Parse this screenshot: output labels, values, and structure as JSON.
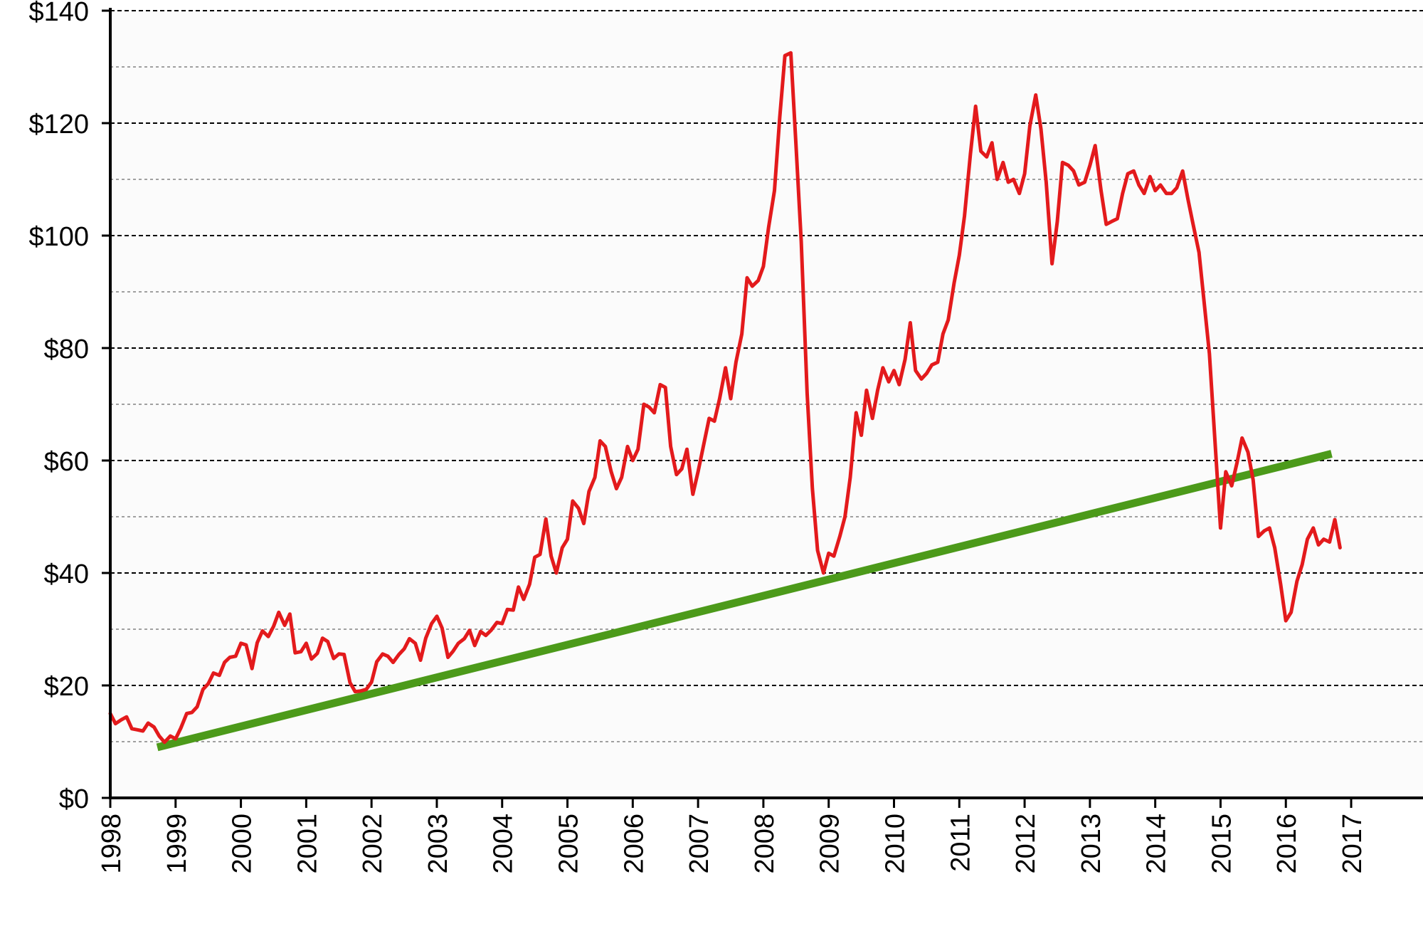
{
  "chart_data": {
    "type": "line",
    "title": "",
    "xlabel": "",
    "ylabel": "",
    "xlim": [
      1998,
      2018.1
    ],
    "ylim": [
      0,
      140
    ],
    "grid": {
      "major_y": true,
      "minor_y": true,
      "style": "dashed"
    },
    "colors": {
      "price": "#e31a1c",
      "trend": "#4c9a1a",
      "grid": "#000000",
      "plot_bg": "#fbfbfb"
    },
    "x_ticks": [
      1998,
      1999,
      2000,
      2001,
      2002,
      2003,
      2004,
      2005,
      2006,
      2007,
      2008,
      2009,
      2010,
      2011,
      2012,
      2013,
      2014,
      2015,
      2016,
      2017
    ],
    "x_tick_labels": [
      "1998",
      "1999",
      "2000",
      "2001",
      "2002",
      "2003",
      "2004",
      "2005",
      "2006",
      "2007",
      "2008",
      "2009",
      "2010",
      "2011",
      "2012",
      "2013",
      "2014",
      "2015",
      "2016",
      "2017"
    ],
    "y_ticks": [
      0,
      20,
      40,
      60,
      80,
      100,
      120,
      140
    ],
    "y_tick_labels": [
      "$0",
      "$20",
      "$40",
      "$60",
      "$80",
      "$100",
      "$120",
      "$140"
    ],
    "series": [
      {
        "id": "price",
        "points": [
          [
            1998.0,
            15.0
          ],
          [
            1998.08,
            13.2
          ],
          [
            1998.17,
            13.9
          ],
          [
            1998.25,
            14.4
          ],
          [
            1998.33,
            12.3
          ],
          [
            1998.42,
            12.1
          ],
          [
            1998.5,
            11.9
          ],
          [
            1998.58,
            13.3
          ],
          [
            1998.67,
            12.6
          ],
          [
            1998.75,
            11.0
          ],
          [
            1998.83,
            9.9
          ],
          [
            1998.92,
            11.0
          ],
          [
            1999.0,
            10.5
          ],
          [
            1999.08,
            12.4
          ],
          [
            1999.17,
            15.0
          ],
          [
            1999.25,
            15.2
          ],
          [
            1999.33,
            16.2
          ],
          [
            1999.42,
            19.3
          ],
          [
            1999.5,
            20.3
          ],
          [
            1999.58,
            22.2
          ],
          [
            1999.67,
            21.8
          ],
          [
            1999.75,
            24.1
          ],
          [
            1999.83,
            25.0
          ],
          [
            1999.92,
            25.2
          ],
          [
            2000.0,
            27.5
          ],
          [
            2000.08,
            27.2
          ],
          [
            2000.17,
            23.0
          ],
          [
            2000.25,
            27.6
          ],
          [
            2000.33,
            29.7
          ],
          [
            2000.42,
            28.7
          ],
          [
            2000.5,
            30.5
          ],
          [
            2000.58,
            33.0
          ],
          [
            2000.67,
            30.7
          ],
          [
            2000.75,
            32.7
          ],
          [
            2000.83,
            25.8
          ],
          [
            2000.92,
            26.0
          ],
          [
            2001.0,
            27.5
          ],
          [
            2001.08,
            24.7
          ],
          [
            2001.17,
            25.7
          ],
          [
            2001.25,
            28.4
          ],
          [
            2001.33,
            27.8
          ],
          [
            2001.42,
            24.8
          ],
          [
            2001.5,
            25.6
          ],
          [
            2001.58,
            25.5
          ],
          [
            2001.67,
            20.5
          ],
          [
            2001.75,
            18.9
          ],
          [
            2001.83,
            19.0
          ],
          [
            2001.92,
            19.3
          ],
          [
            2002.0,
            20.6
          ],
          [
            2002.08,
            24.2
          ],
          [
            2002.17,
            25.6
          ],
          [
            2002.25,
            25.2
          ],
          [
            2002.33,
            24.1
          ],
          [
            2002.42,
            25.5
          ],
          [
            2002.5,
            26.5
          ],
          [
            2002.58,
            28.3
          ],
          [
            2002.67,
            27.5
          ],
          [
            2002.75,
            24.5
          ],
          [
            2002.83,
            28.4
          ],
          [
            2002.92,
            31.0
          ],
          [
            2003.0,
            32.3
          ],
          [
            2003.08,
            30.2
          ],
          [
            2003.17,
            25.0
          ],
          [
            2003.25,
            26.1
          ],
          [
            2003.33,
            27.5
          ],
          [
            2003.42,
            28.3
          ],
          [
            2003.5,
            29.8
          ],
          [
            2003.58,
            27.1
          ],
          [
            2003.67,
            29.6
          ],
          [
            2003.75,
            28.9
          ],
          [
            2003.83,
            29.8
          ],
          [
            2003.92,
            31.2
          ],
          [
            2004.0,
            31.0
          ],
          [
            2004.08,
            33.5
          ],
          [
            2004.17,
            33.4
          ],
          [
            2004.25,
            37.5
          ],
          [
            2004.33,
            35.3
          ],
          [
            2004.42,
            38.0
          ],
          [
            2004.5,
            42.8
          ],
          [
            2004.58,
            43.3
          ],
          [
            2004.67,
            49.6
          ],
          [
            2004.75,
            43.0
          ],
          [
            2004.83,
            40.0
          ],
          [
            2004.92,
            44.5
          ],
          [
            2005.0,
            46.0
          ],
          [
            2005.08,
            52.8
          ],
          [
            2005.17,
            51.5
          ],
          [
            2005.25,
            48.8
          ],
          [
            2005.33,
            54.5
          ],
          [
            2005.42,
            57.0
          ],
          [
            2005.5,
            63.5
          ],
          [
            2005.58,
            62.5
          ],
          [
            2005.67,
            58.0
          ],
          [
            2005.75,
            55.0
          ],
          [
            2005.83,
            57.0
          ],
          [
            2005.92,
            62.5
          ],
          [
            2006.0,
            60.0
          ],
          [
            2006.08,
            62.0
          ],
          [
            2006.17,
            70.0
          ],
          [
            2006.25,
            69.5
          ],
          [
            2006.33,
            68.5
          ],
          [
            2006.42,
            73.5
          ],
          [
            2006.5,
            73.0
          ],
          [
            2006.58,
            62.5
          ],
          [
            2006.67,
            57.5
          ],
          [
            2006.75,
            58.5
          ],
          [
            2006.83,
            62.0
          ],
          [
            2006.92,
            54.0
          ],
          [
            2007.0,
            58.0
          ],
          [
            2007.08,
            62.5
          ],
          [
            2007.17,
            67.5
          ],
          [
            2007.25,
            67.0
          ],
          [
            2007.33,
            71.0
          ],
          [
            2007.42,
            76.5
          ],
          [
            2007.5,
            71.0
          ],
          [
            2007.58,
            77.5
          ],
          [
            2007.67,
            82.5
          ],
          [
            2007.75,
            92.5
          ],
          [
            2007.83,
            91.0
          ],
          [
            2007.92,
            92.0
          ],
          [
            2008.0,
            94.5
          ],
          [
            2008.08,
            101.5
          ],
          [
            2008.17,
            108.0
          ],
          [
            2008.25,
            121.0
          ],
          [
            2008.33,
            132.0
          ],
          [
            2008.42,
            132.5
          ],
          [
            2008.5,
            116.0
          ],
          [
            2008.58,
            99.0
          ],
          [
            2008.67,
            72.0
          ],
          [
            2008.75,
            55.0
          ],
          [
            2008.83,
            44.0
          ],
          [
            2008.92,
            40.0
          ],
          [
            2009.0,
            43.5
          ],
          [
            2009.08,
            43.0
          ],
          [
            2009.17,
            46.5
          ],
          [
            2009.25,
            50.0
          ],
          [
            2009.33,
            57.0
          ],
          [
            2009.42,
            68.5
          ],
          [
            2009.5,
            64.5
          ],
          [
            2009.58,
            72.5
          ],
          [
            2009.67,
            67.5
          ],
          [
            2009.75,
            72.5
          ],
          [
            2009.83,
            76.5
          ],
          [
            2009.92,
            74.0
          ],
          [
            2010.0,
            76.0
          ],
          [
            2010.08,
            73.5
          ],
          [
            2010.17,
            78.0
          ],
          [
            2010.25,
            84.5
          ],
          [
            2010.33,
            76.0
          ],
          [
            2010.42,
            74.5
          ],
          [
            2010.5,
            75.5
          ],
          [
            2010.58,
            77.0
          ],
          [
            2010.67,
            77.5
          ],
          [
            2010.75,
            82.5
          ],
          [
            2010.83,
            85.0
          ],
          [
            2010.92,
            91.5
          ],
          [
            2011.0,
            96.5
          ],
          [
            2011.08,
            103.5
          ],
          [
            2011.17,
            114.5
          ],
          [
            2011.25,
            123.0
          ],
          [
            2011.33,
            115.0
          ],
          [
            2011.42,
            114.0
          ],
          [
            2011.5,
            116.5
          ],
          [
            2011.58,
            110.0
          ],
          [
            2011.67,
            113.0
          ],
          [
            2011.75,
            109.5
          ],
          [
            2011.83,
            110.0
          ],
          [
            2011.92,
            107.5
          ],
          [
            2012.0,
            111.0
          ],
          [
            2012.08,
            119.5
          ],
          [
            2012.17,
            125.0
          ],
          [
            2012.25,
            119.0
          ],
          [
            2012.33,
            109.5
          ],
          [
            2012.42,
            95.0
          ],
          [
            2012.5,
            102.5
          ],
          [
            2012.58,
            113.0
          ],
          [
            2012.67,
            112.5
          ],
          [
            2012.75,
            111.5
          ],
          [
            2012.83,
            109.0
          ],
          [
            2012.92,
            109.5
          ],
          [
            2013.0,
            112.5
          ],
          [
            2013.08,
            116.0
          ],
          [
            2013.17,
            108.0
          ],
          [
            2013.25,
            102.0
          ],
          [
            2013.33,
            102.5
          ],
          [
            2013.42,
            103.0
          ],
          [
            2013.5,
            107.5
          ],
          [
            2013.58,
            111.0
          ],
          [
            2013.67,
            111.5
          ],
          [
            2013.75,
            109.0
          ],
          [
            2013.83,
            107.5
          ],
          [
            2013.92,
            110.5
          ],
          [
            2014.0,
            108.0
          ],
          [
            2014.08,
            109.0
          ],
          [
            2014.17,
            107.5
          ],
          [
            2014.25,
            107.5
          ],
          [
            2014.33,
            108.5
          ],
          [
            2014.42,
            111.5
          ],
          [
            2014.5,
            106.5
          ],
          [
            2014.58,
            102.0
          ],
          [
            2014.67,
            97.0
          ],
          [
            2014.75,
            88.0
          ],
          [
            2014.83,
            79.0
          ],
          [
            2014.92,
            62.5
          ],
          [
            2015.0,
            48.0
          ],
          [
            2015.08,
            58.0
          ],
          [
            2015.17,
            55.5
          ],
          [
            2015.25,
            59.5
          ],
          [
            2015.33,
            64.0
          ],
          [
            2015.42,
            61.5
          ],
          [
            2015.5,
            56.5
          ],
          [
            2015.58,
            46.5
          ],
          [
            2015.67,
            47.5
          ],
          [
            2015.75,
            48.0
          ],
          [
            2015.83,
            44.5
          ],
          [
            2015.92,
            38.0
          ],
          [
            2016.0,
            31.5
          ],
          [
            2016.08,
            33.0
          ],
          [
            2016.17,
            38.5
          ],
          [
            2016.25,
            41.5
          ],
          [
            2016.33,
            46.0
          ],
          [
            2016.42,
            48.0
          ],
          [
            2016.5,
            45.0
          ],
          [
            2016.58,
            46.0
          ],
          [
            2016.67,
            45.5
          ],
          [
            2016.75,
            49.5
          ],
          [
            2016.83,
            44.5
          ]
        ]
      },
      {
        "id": "trend",
        "points": [
          [
            1998.72,
            9.0
          ],
          [
            2016.7,
            61.2
          ]
        ]
      }
    ]
  }
}
